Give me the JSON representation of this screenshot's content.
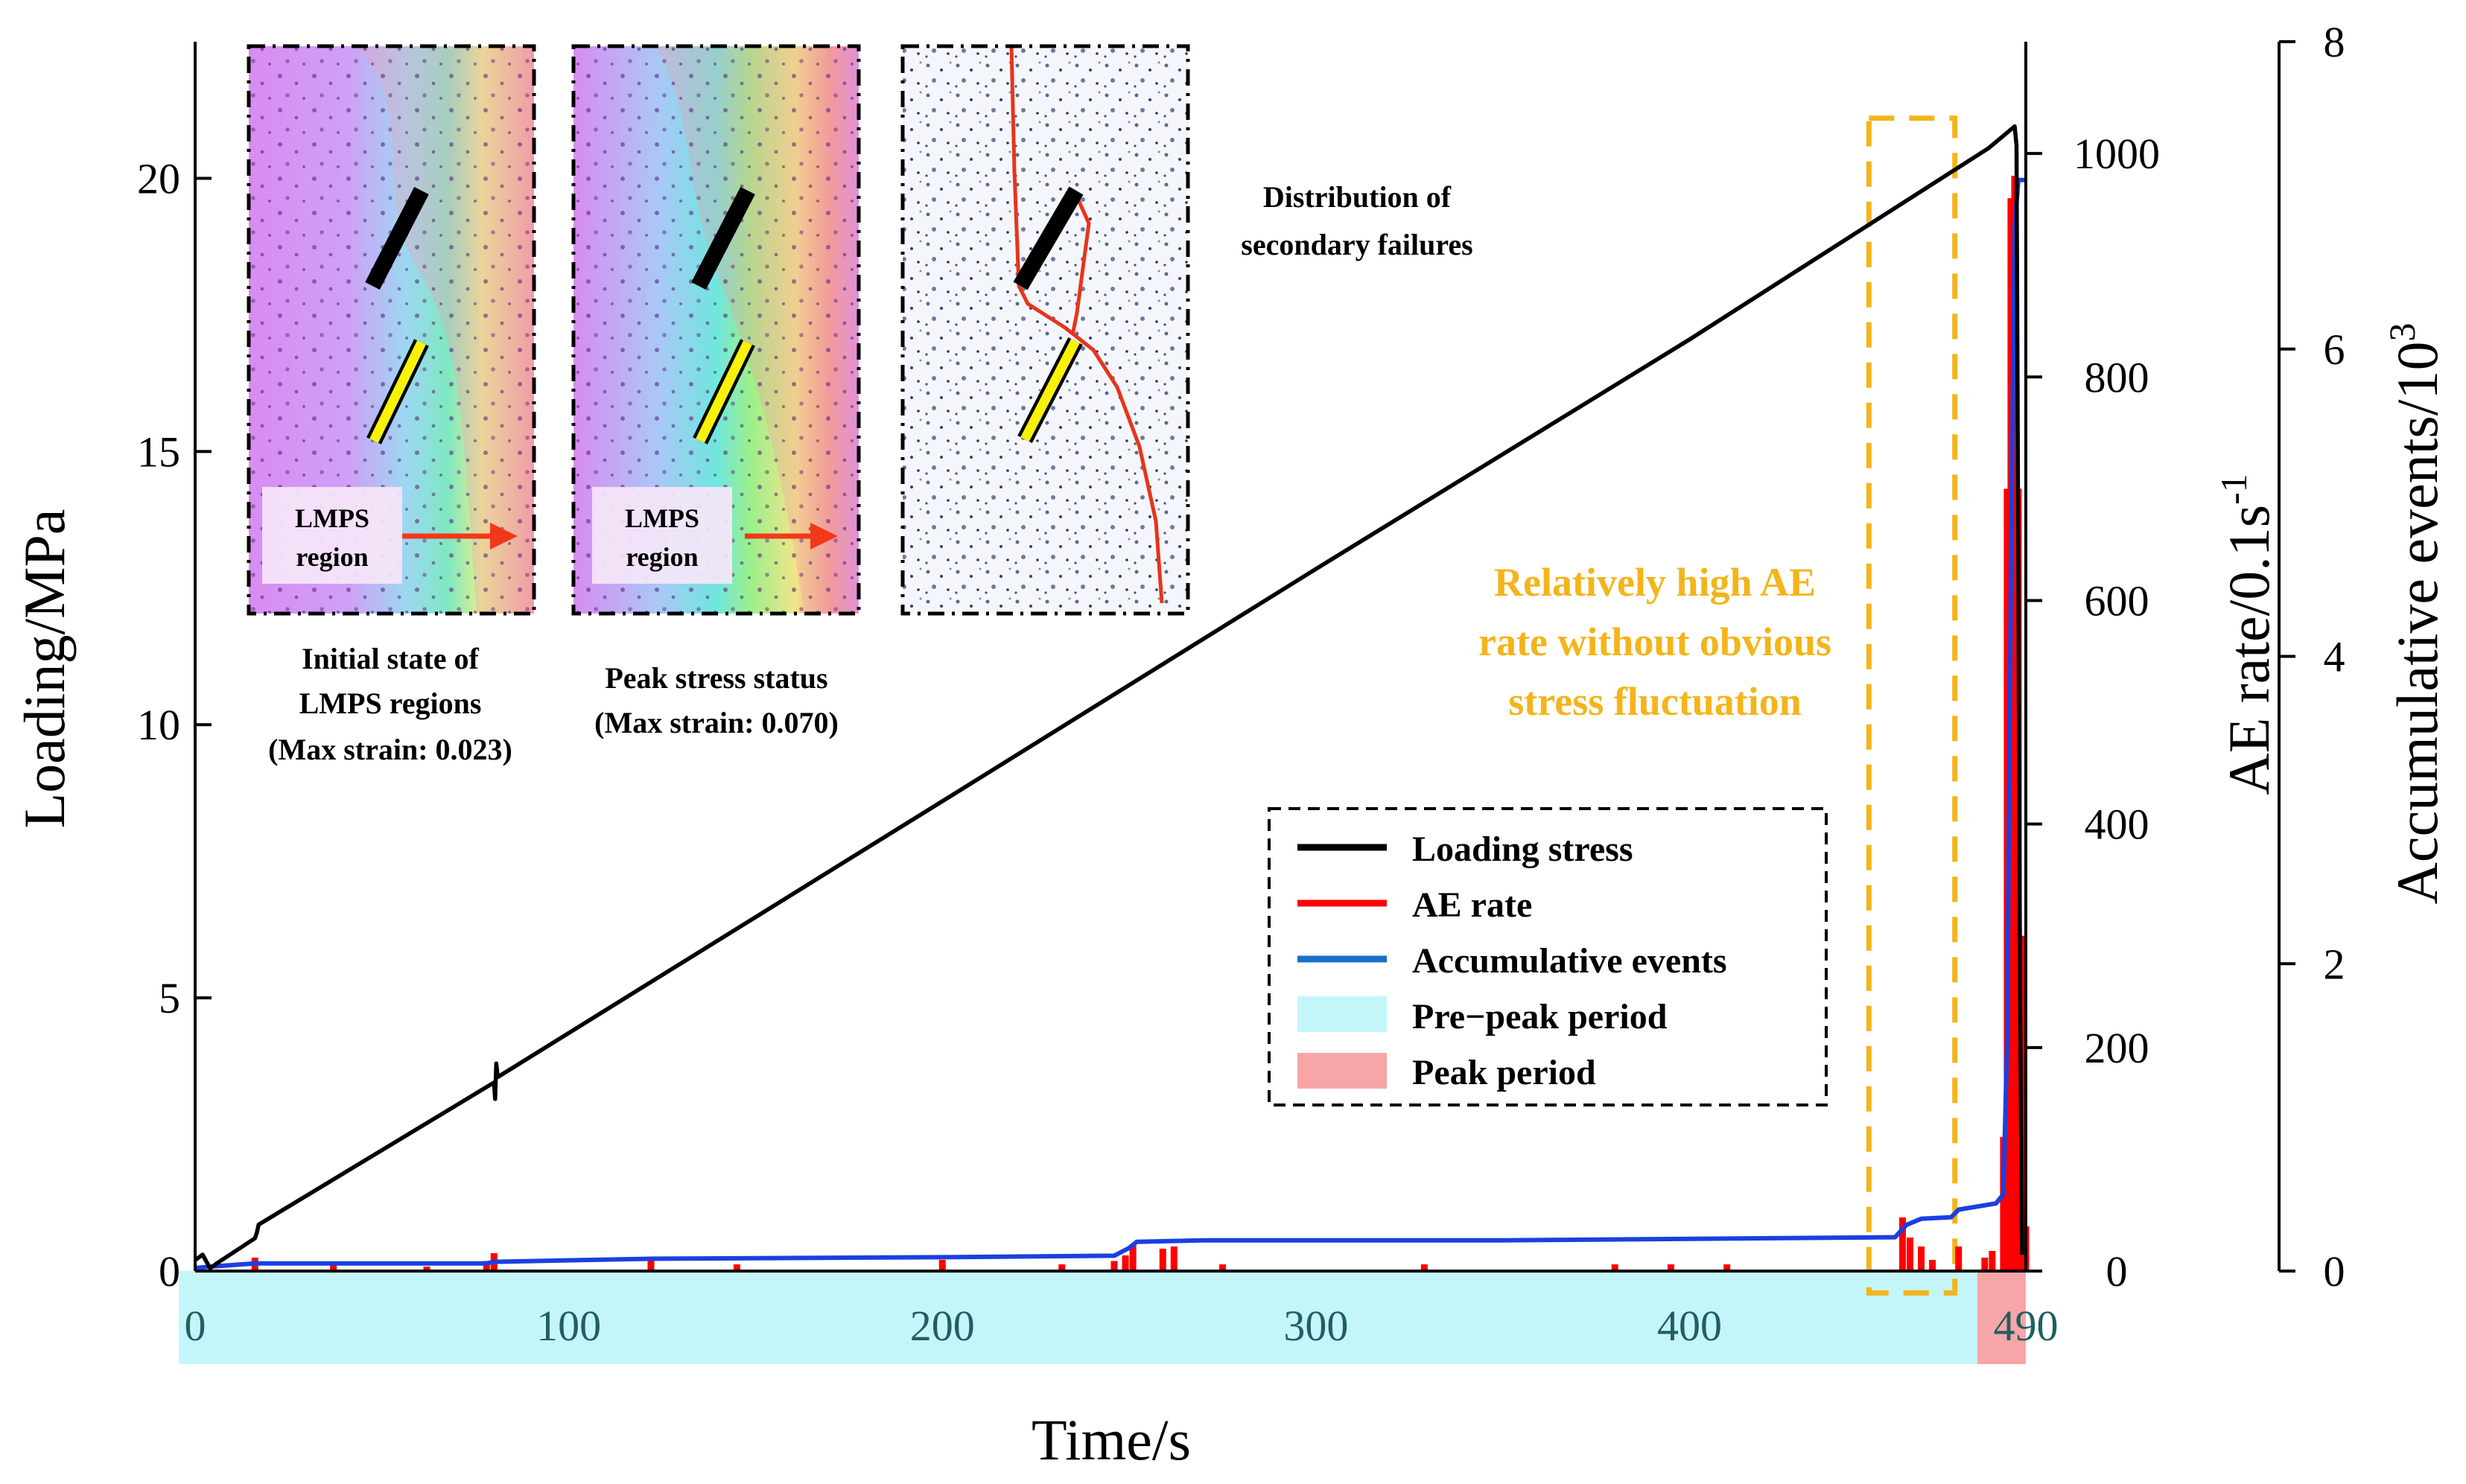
{
  "chart_data": {
    "type": "line",
    "xlabel": "Time/s",
    "x_range": [
      0,
      490
    ],
    "x_ticks": [
      "0",
      "100",
      "200",
      "300",
      "400",
      "490"
    ],
    "y_left": {
      "label": "Loading/MPa",
      "range": [
        0,
        22.5
      ],
      "ticks": [
        "0",
        "5",
        "10",
        "15",
        "20"
      ]
    },
    "y_right_1": {
      "label_main": "AE rate/0.1s",
      "label_sup": "-1",
      "range": [
        0,
        1100
      ],
      "ticks": [
        "0",
        "200",
        "400",
        "600",
        "800",
        "1000"
      ]
    },
    "y_right_2": {
      "label": "Accumulative events/10",
      "label_sup": "3",
      "range": [
        0,
        8
      ],
      "ticks": [
        "0",
        "2",
        "4",
        "6",
        "8"
      ]
    },
    "series": [
      {
        "name": "Loading stress",
        "color": "#000000",
        "axis": "left",
        "points": [
          [
            0,
            0.2
          ],
          [
            2,
            0.3
          ],
          [
            4,
            0.05
          ],
          [
            6,
            0.15
          ],
          [
            16,
            0.6
          ],
          [
            16.5,
            0.7
          ],
          [
            17,
            0.85
          ],
          [
            80,
            3.45
          ],
          [
            80.3,
            3.15
          ],
          [
            80.6,
            3.8
          ],
          [
            81,
            3.55
          ],
          [
            200,
            8.6
          ],
          [
            300,
            12.85
          ],
          [
            400,
            17.05
          ],
          [
            480,
            20.55
          ],
          [
            487,
            20.95
          ],
          [
            487.5,
            20.6
          ],
          [
            488.5,
            4.5
          ],
          [
            489,
            0.3
          ]
        ]
      },
      {
        "name": "AE rate",
        "color": "#FF0000",
        "axis": "right_1",
        "points": [
          [
            16,
            12
          ],
          [
            37,
            8
          ],
          [
            62,
            4
          ],
          [
            78,
            9
          ],
          [
            80,
            16
          ],
          [
            122,
            10
          ],
          [
            145,
            6
          ],
          [
            200,
            10
          ],
          [
            232,
            6
          ],
          [
            246,
            9
          ],
          [
            249,
            14
          ],
          [
            251,
            24
          ],
          [
            259,
            20
          ],
          [
            262,
            22
          ],
          [
            275,
            6
          ],
          [
            329,
            6
          ],
          [
            380,
            6
          ],
          [
            395,
            6
          ],
          [
            410,
            6
          ],
          [
            457,
            48
          ],
          [
            459,
            30
          ],
          [
            462,
            22
          ],
          [
            465,
            10
          ],
          [
            472,
            22
          ],
          [
            479,
            12
          ],
          [
            481,
            18
          ],
          [
            484,
            120
          ],
          [
            485,
            700
          ],
          [
            486,
            960
          ],
          [
            487,
            980
          ],
          [
            488,
            700
          ],
          [
            489,
            300
          ],
          [
            490,
            40
          ]
        ]
      },
      {
        "name": "Accumulative events",
        "color": "#1B3FE0",
        "axis": "right_2",
        "points": [
          [
            0,
            0.02
          ],
          [
            5,
            0.03
          ],
          [
            16,
            0.05
          ],
          [
            78,
            0.05
          ],
          [
            80,
            0.06
          ],
          [
            122,
            0.08
          ],
          [
            200,
            0.09
          ],
          [
            246,
            0.1
          ],
          [
            250,
            0.15
          ],
          [
            252,
            0.19
          ],
          [
            270,
            0.2
          ],
          [
            350,
            0.2
          ],
          [
            455,
            0.22
          ],
          [
            458,
            0.3
          ],
          [
            462,
            0.34
          ],
          [
            470,
            0.35
          ],
          [
            472,
            0.4
          ],
          [
            482,
            0.44
          ],
          [
            484,
            0.5
          ],
          [
            485,
            1.5
          ],
          [
            486,
            4.5
          ],
          [
            487,
            6.8
          ],
          [
            488,
            7.1
          ],
          [
            490,
            7.1
          ]
        ]
      }
    ],
    "legend": {
      "placement": "lower-right",
      "items": [
        {
          "label": "Loading stress",
          "kind": "line",
          "color": "#000000"
        },
        {
          "label": "AE rate",
          "kind": "line",
          "color": "#FF0000"
        },
        {
          "label": "Accumulative events",
          "kind": "line",
          "color": "#1B6FC8"
        },
        {
          "label": "Pre−peak period",
          "kind": "patch",
          "color": "#C4F6F9"
        },
        {
          "label": "Peak period",
          "kind": "patch",
          "color": "#F8A5A8"
        }
      ]
    },
    "periods": [
      {
        "name": "Pre−peak period",
        "from": 0,
        "to": 477,
        "color": "#C4F6F9"
      },
      {
        "name": "Peak period",
        "from": 477,
        "to": 490,
        "color": "#F8A5A8"
      }
    ],
    "highlight_window": {
      "from": 448,
      "to": 471,
      "color": "#F4B41A"
    },
    "annotation": {
      "lines": [
        "Relatively high AE",
        "rate without obvious",
        "stress fluctuation"
      ],
      "color": "#F4B41A"
    }
  },
  "insets": [
    {
      "caption": [
        "Initial state of",
        "LMPS regions",
        "(Max strain: 0.023)"
      ],
      "region_label": [
        "LMPS",
        "region"
      ]
    },
    {
      "caption": [
        "Peak stress status",
        "(Max strain:  0.070)"
      ],
      "region_label": [
        "LMPS",
        "region"
      ]
    },
    {
      "caption": [
        "Distribution of",
        "secondary failures"
      ]
    }
  ]
}
